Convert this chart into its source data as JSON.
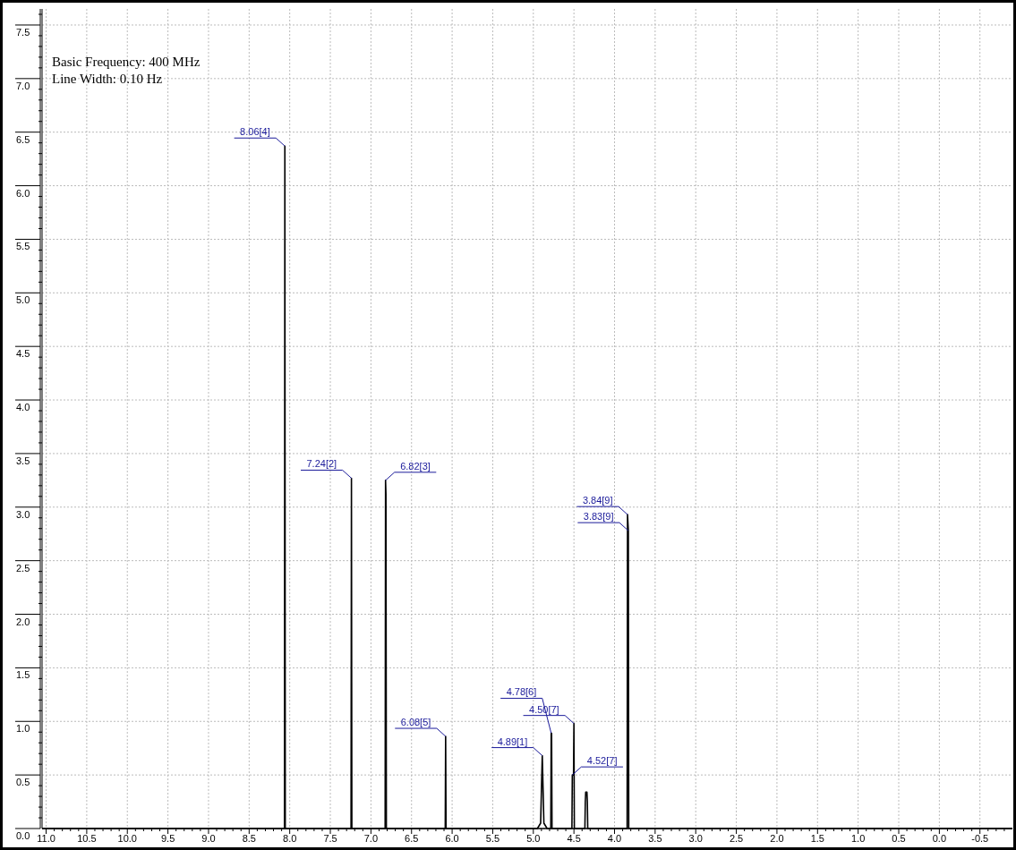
{
  "chart_data": {
    "type": "line",
    "xlim": [
      11.05,
      -0.9
    ],
    "ylim": [
      0,
      7.65
    ],
    "xticks": [
      {
        "value": 11,
        "label": "11.0"
      },
      10.5,
      {
        "value": 10,
        "label": "10.0"
      },
      9.5,
      {
        "value": 9,
        "label": "9.0"
      },
      8.5,
      {
        "value": 8,
        "label": "8.0"
      },
      7.5,
      {
        "value": 7,
        "label": "7.0"
      },
      6.5,
      {
        "value": 6,
        "label": "6.0"
      },
      5.5,
      {
        "value": 5,
        "label": "5.0"
      },
      4.5,
      {
        "value": 4,
        "label": "4.0"
      },
      3.5,
      {
        "value": 3,
        "label": "3.0"
      },
      2.5,
      {
        "value": 2,
        "label": "2.0"
      },
      1.5,
      {
        "value": 1,
        "label": "1.0"
      },
      0.5,
      {
        "value": 0,
        "label": "0.0"
      },
      -0.5
    ],
    "yticks": [
      {
        "value": 0,
        "label": "0.0"
      },
      0.5,
      {
        "value": 1,
        "label": "1.0"
      },
      1.5,
      {
        "value": 2,
        "label": "2.0"
      },
      2.5,
      {
        "value": 3,
        "label": "3.0"
      },
      3.5,
      {
        "value": 4,
        "label": "4.0"
      },
      4.5,
      {
        "value": 5,
        "label": "5.0"
      },
      5.5,
      {
        "value": 6,
        "label": "6.0"
      },
      6.5,
      {
        "value": 7,
        "label": "7.0"
      },
      7.5
    ],
    "grid": true,
    "marker": "none",
    "line_style": "solid",
    "series": [
      {
        "color": "#000000",
        "x": [
          11.05,
          8.065,
          8.06,
          8.055,
          7.245,
          7.24,
          7.235,
          6.825,
          6.82,
          6.815,
          6.81,
          6.085,
          6.08,
          6.075,
          4.95,
          4.91,
          4.89,
          4.87,
          4.83,
          4.785,
          4.78,
          4.775,
          4.77,
          4.525,
          4.52,
          4.505,
          4.5,
          4.495,
          4.365,
          4.36,
          4.355,
          4.34,
          4.335,
          4.33,
          3.845,
          3.84,
          3.83,
          3.825,
          -0.9
        ],
        "values": [
          0,
          0,
          6.37,
          0,
          0,
          3.27,
          0,
          0,
          3.25,
          3.12,
          0,
          0,
          0.86,
          0,
          0,
          0.05,
          0.68,
          0.05,
          0,
          0,
          0.89,
          0.89,
          0,
          0,
          0.5,
          0.5,
          0.98,
          0,
          0,
          0.25,
          0.34,
          0.34,
          0.25,
          0,
          0,
          2.93,
          2.78,
          0,
          0
        ]
      }
    ],
    "annotations": [
      "Basic Frequency: 400 MHz",
      "Line Width: 0.10 Hz",
      {
        "text": "8.06[4]",
        "x": 8.06,
        "y": 6.37
      },
      {
        "text": "7.24[2]",
        "x": 7.24,
        "y": 3.27
      },
      {
        "text": "6.82[3]",
        "x": 6.82,
        "y": 3.25
      },
      {
        "text": "6.08[5]",
        "x": 6.08,
        "y": 0.86
      },
      {
        "text": "4.89[1]",
        "x": 4.89,
        "y": 0.68
      },
      {
        "text": "4.78[6]",
        "x": 4.78,
        "y": 0.89
      },
      {
        "text": "4.50[7]",
        "x": 4.5,
        "y": 0.98
      },
      {
        "text": "4.52[7]",
        "x": 4.52,
        "y": 0.5
      },
      {
        "text": "3.84[9]",
        "x": 3.84,
        "y": 2.93
      },
      {
        "text": "3.83[9]",
        "x": 3.83,
        "y": 2.78
      }
    ]
  }
}
